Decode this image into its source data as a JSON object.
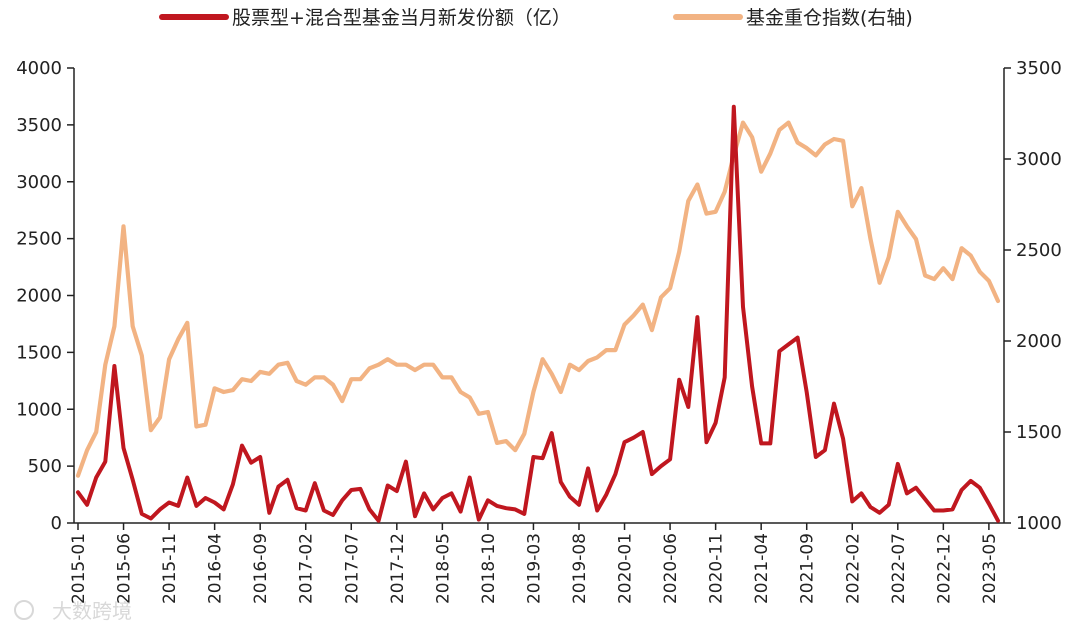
{
  "chart_data": {
    "type": "line",
    "legend_position": "top",
    "grid": false,
    "x": [
      "2015-01",
      "2015-02",
      "2015-03",
      "2015-04",
      "2015-05",
      "2015-06",
      "2015-07",
      "2015-08",
      "2015-09",
      "2015-10",
      "2015-11",
      "2015-12",
      "2016-01",
      "2016-02",
      "2016-03",
      "2016-04",
      "2016-05",
      "2016-06",
      "2016-07",
      "2016-08",
      "2016-09",
      "2016-10",
      "2016-11",
      "2016-12",
      "2017-01",
      "2017-02",
      "2017-03",
      "2017-04",
      "2017-05",
      "2017-06",
      "2017-07",
      "2017-08",
      "2017-09",
      "2017-10",
      "2017-11",
      "2017-12",
      "2018-01",
      "2018-02",
      "2018-03",
      "2018-04",
      "2018-05",
      "2018-06",
      "2018-07",
      "2018-08",
      "2018-09",
      "2018-10",
      "2018-11",
      "2018-12",
      "2019-01",
      "2019-02",
      "2019-03",
      "2019-04",
      "2019-05",
      "2019-06",
      "2019-07",
      "2019-08",
      "2019-09",
      "2019-10",
      "2019-11",
      "2019-12",
      "2020-01",
      "2020-02",
      "2020-03",
      "2020-04",
      "2020-05",
      "2020-06",
      "2020-07",
      "2020-08",
      "2020-09",
      "2020-10",
      "2020-11",
      "2020-12",
      "2021-01",
      "2021-02",
      "2021-03",
      "2021-04",
      "2021-05",
      "2021-06",
      "2021-07",
      "2021-08",
      "2021-09",
      "2021-10",
      "2021-11",
      "2021-12",
      "2022-01",
      "2022-02",
      "2022-03",
      "2022-04",
      "2022-05",
      "2022-06",
      "2022-07",
      "2022-08",
      "2022-09",
      "2022-10",
      "2022-11",
      "2022-12",
      "2023-01",
      "2023-02",
      "2023-03",
      "2023-04",
      "2023-05",
      "2023-06"
    ],
    "x_tick_labels": [
      "2015-01",
      "2015-06",
      "2015-11",
      "2016-04",
      "2016-09",
      "2017-02",
      "2017-07",
      "2017-12",
      "2018-05",
      "2018-10",
      "2019-03",
      "2019-08",
      "2020-01",
      "2020-06",
      "2020-11",
      "2021-04",
      "2021-09",
      "2022-02",
      "2022-07",
      "2022-12",
      "2023-05"
    ],
    "y_left": {
      "range": [
        0,
        4000
      ],
      "ticks": [
        "0",
        "500",
        "1000",
        "1500",
        "2000",
        "2500",
        "3000",
        "3500",
        "4000"
      ]
    },
    "y_right": {
      "range": [
        1000,
        3500
      ],
      "ticks": [
        "1000",
        "1500",
        "2000",
        "2500",
        "3000",
        "3500"
      ]
    },
    "series": [
      {
        "name": "股票型+混合型基金当月新发份额（亿）",
        "axis": "left",
        "color": "#c0171f",
        "values": [
          270,
          160,
          400,
          540,
          1380,
          660,
          380,
          80,
          40,
          120,
          180,
          150,
          400,
          150,
          220,
          180,
          120,
          340,
          680,
          530,
          580,
          90,
          320,
          380,
          130,
          110,
          350,
          110,
          70,
          200,
          290,
          300,
          120,
          20,
          330,
          280,
          540,
          60,
          260,
          120,
          220,
          260,
          100,
          400,
          30,
          200,
          150,
          130,
          120,
          80,
          580,
          570,
          790,
          360,
          230,
          160,
          480,
          110,
          250,
          430,
          710,
          750,
          800,
          430,
          500,
          560,
          1260,
          1020,
          1810,
          710,
          880,
          1280,
          3660,
          1900,
          1200,
          700,
          700,
          1510,
          1570,
          1630,
          1150,
          580,
          640,
          1050,
          740,
          190,
          260,
          140,
          90,
          160,
          520,
          260,
          310,
          210,
          110,
          110,
          120,
          290,
          370,
          310,
          170,
          20
        ]
      },
      {
        "name": "基金重仓指数(右轴)",
        "axis": "right",
        "color": "#f2b383",
        "values": [
          1260,
          1400,
          1500,
          1870,
          2080,
          2630,
          2080,
          1920,
          1510,
          1580,
          1900,
          2010,
          2100,
          1530,
          1540,
          1740,
          1720,
          1730,
          1790,
          1780,
          1830,
          1820,
          1870,
          1880,
          1780,
          1760,
          1800,
          1800,
          1760,
          1670,
          1790,
          1790,
          1850,
          1870,
          1900,
          1870,
          1870,
          1840,
          1870,
          1870,
          1800,
          1800,
          1720,
          1690,
          1600,
          1610,
          1440,
          1450,
          1400,
          1490,
          1720,
          1900,
          1820,
          1720,
          1870,
          1840,
          1890,
          1910,
          1950,
          1950,
          2090,
          2140,
          2200,
          2060,
          2240,
          2290,
          2490,
          2770,
          2860,
          2700,
          2710,
          2820,
          3020,
          3200,
          3120,
          2930,
          3030,
          3160,
          3200,
          3090,
          3060,
          3020,
          3080,
          3110,
          3100,
          2740,
          2840,
          2560,
          2320,
          2460,
          2710,
          2630,
          2560,
          2360,
          2340,
          2400,
          2340,
          2510,
          2470,
          2380,
          2330,
          2220
        ]
      }
    ],
    "watermark": "大数跨境"
  }
}
